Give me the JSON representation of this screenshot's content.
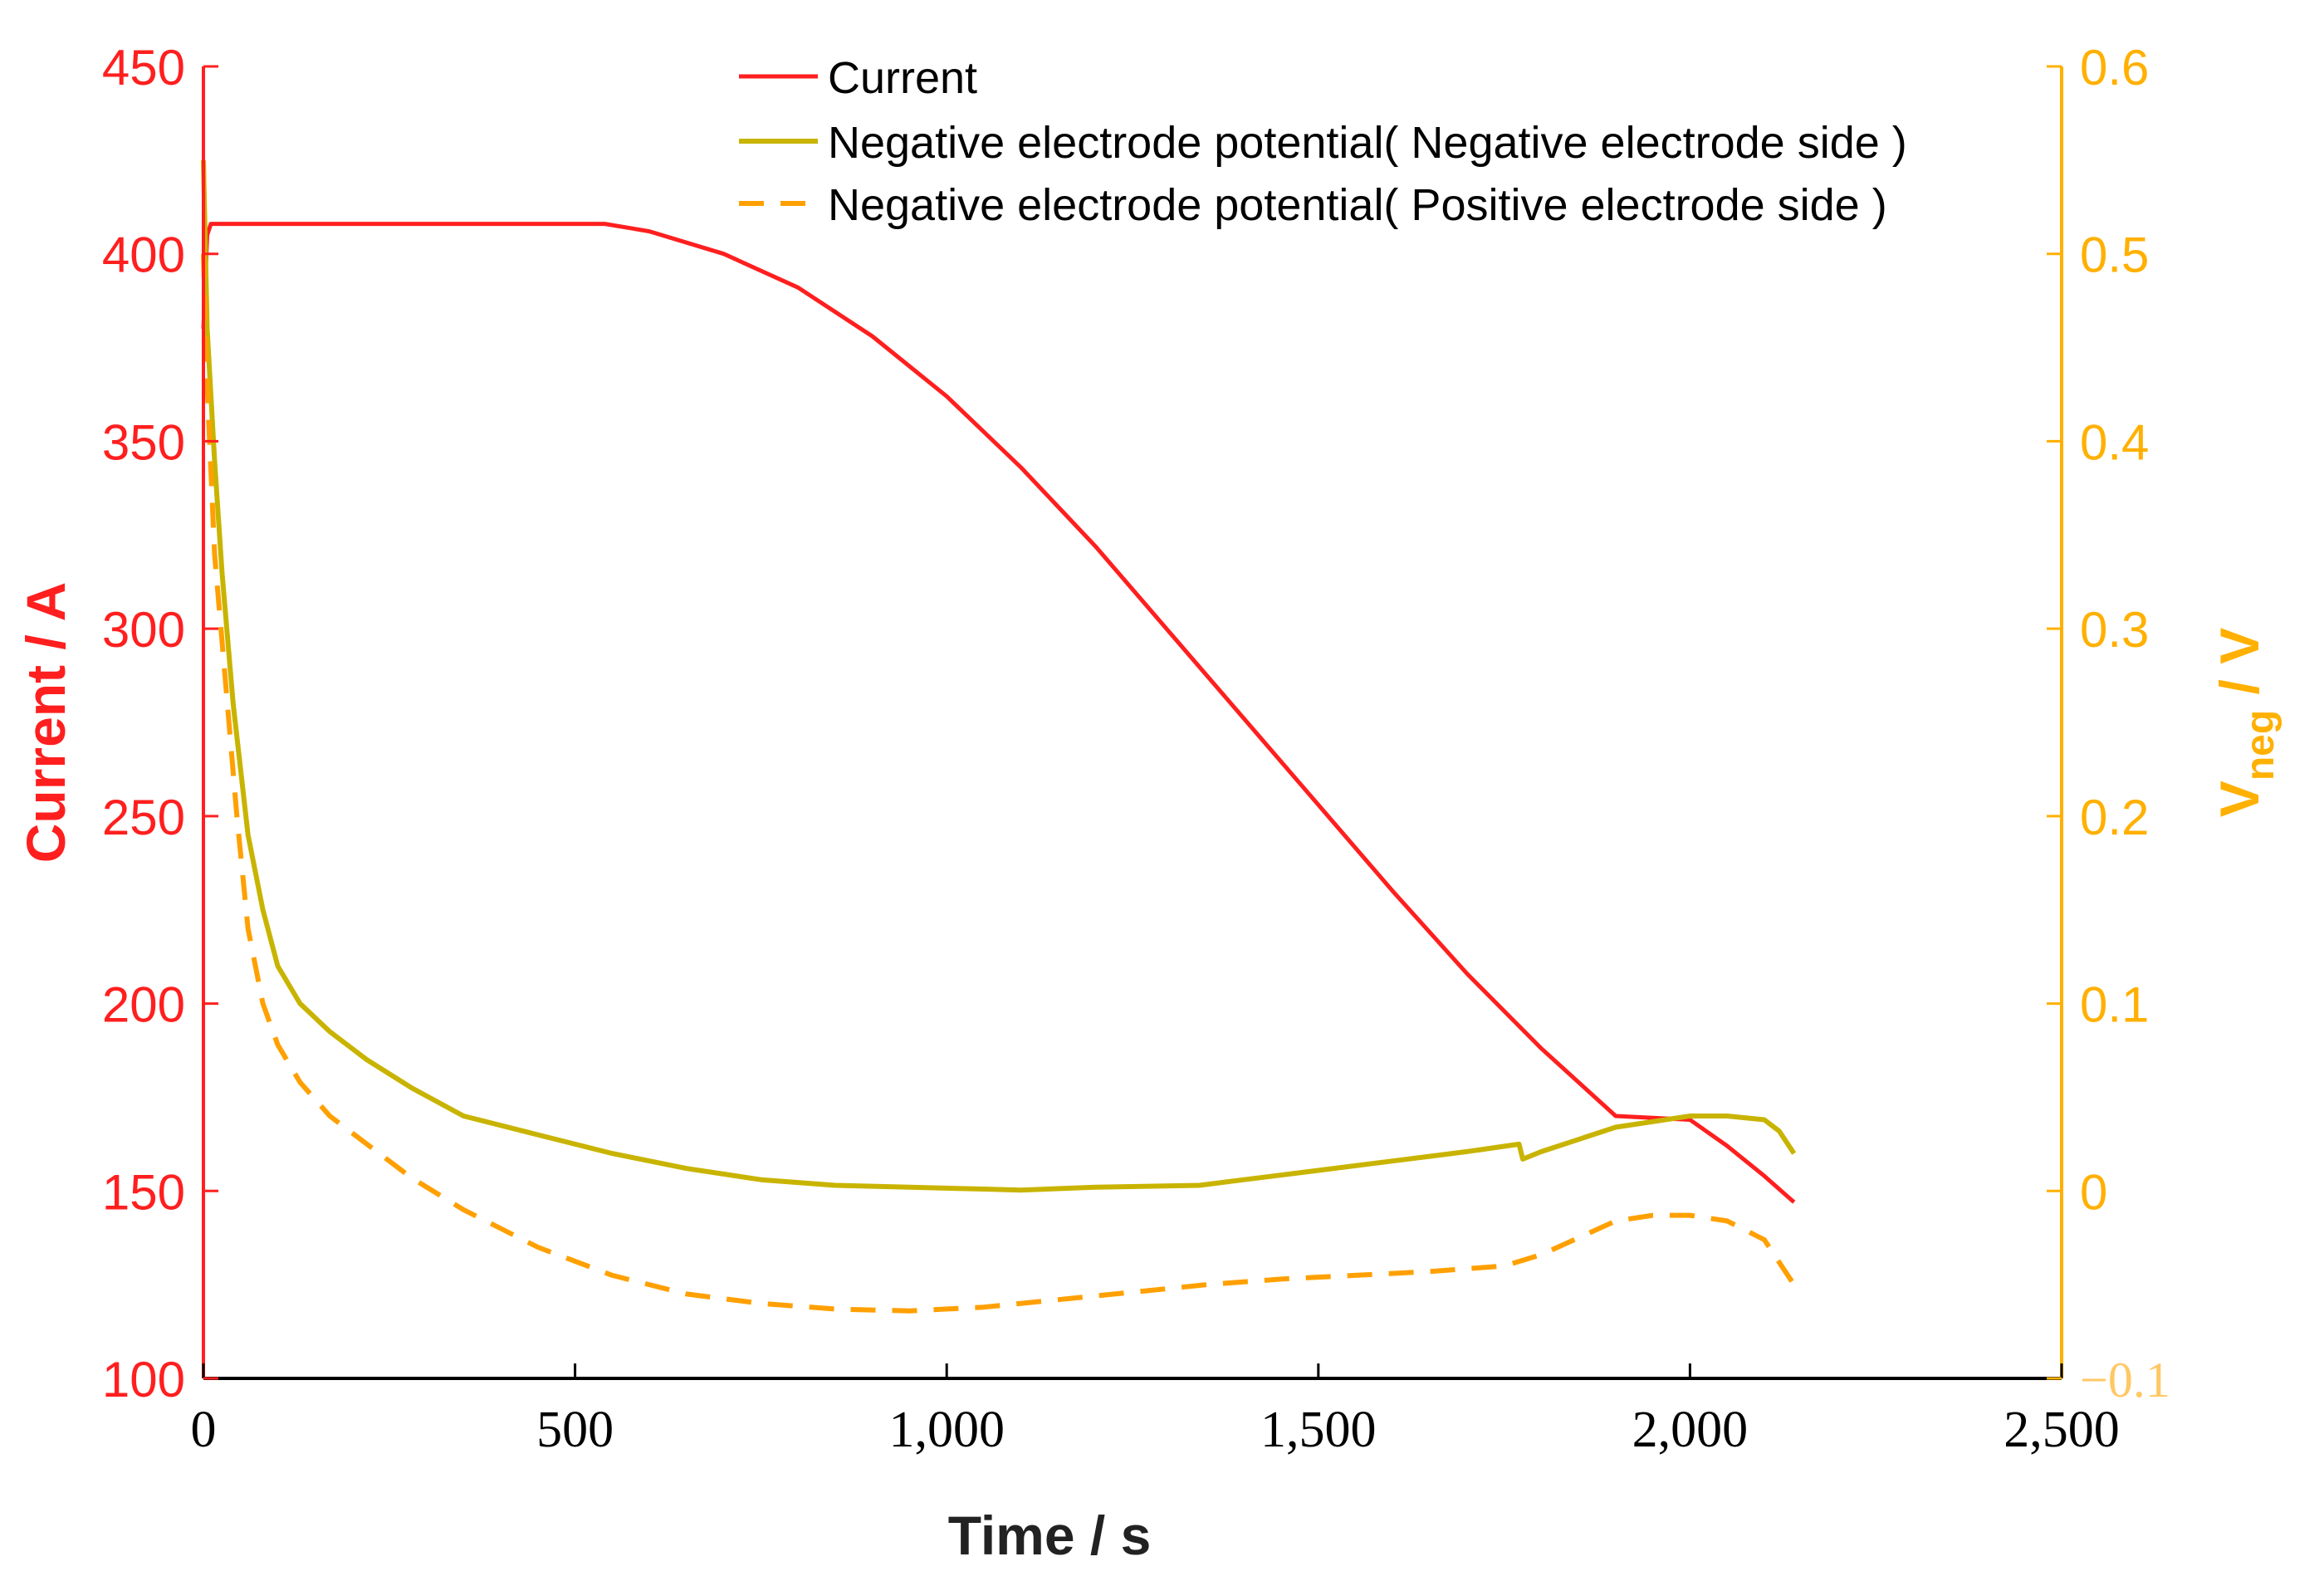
{
  "colors": {
    "current": "#ff1f1f",
    "neg_side": "#c8b400",
    "pos_side": "#ffa000",
    "right_axis": "#ffb000",
    "right_tick_light": "#ffc864",
    "axis_black": "#000000"
  },
  "chart_data": {
    "type": "line",
    "title": "",
    "xlabel": "Time / s",
    "ylabel_left": "Current / A",
    "ylabel_right_main": "V",
    "ylabel_right_sub": "neg",
    "ylabel_right_suffix": " / V",
    "xlim": [
      0,
      2500
    ],
    "ylim_left": [
      100,
      450
    ],
    "ylim_right": [
      -0.1,
      0.6
    ],
    "x_ticks": [
      0,
      500,
      1000,
      1500,
      2000,
      2500
    ],
    "x_tick_labels": [
      "0",
      "500",
      "1,000",
      "1,500",
      "2,000",
      "2,500"
    ],
    "y_left_ticks": [
      100,
      150,
      200,
      250,
      300,
      350,
      400,
      450
    ],
    "y_left_tick_labels": [
      "100",
      "150",
      "200",
      "250",
      "300",
      "350",
      "400",
      "450"
    ],
    "y_right_ticks": [
      -0.1,
      0,
      0.1,
      0.2,
      0.3,
      0.4,
      0.5,
      0.6
    ],
    "y_right_tick_labels": [
      "−0.1",
      "0",
      "0.1",
      "0.2",
      "0.3",
      "0.4",
      "0.5",
      "0.6"
    ],
    "legend_position": "top-center",
    "series": [
      {
        "name": "Current",
        "axis": "left",
        "style": "solid",
        "x": [
          0,
          5,
          10,
          100,
          300,
          500,
          540,
          600,
          700,
          800,
          900,
          1000,
          1100,
          1200,
          1300,
          1400,
          1500,
          1600,
          1700,
          1800,
          1900,
          2000,
          2050,
          2100,
          2140
        ],
        "y": [
          380,
          405,
          408,
          408,
          408,
          408,
          408,
          406,
          400,
          391,
          378,
          362,
          343,
          322,
          299,
          276,
          253,
          230,
          208,
          188,
          170,
          169,
          162,
          154,
          147
        ]
      },
      {
        "name": "Negative electrode potential( Negative electrode side )",
        "axis": "right",
        "style": "solid",
        "x": [
          0,
          5,
          15,
          25,
          40,
          60,
          80,
          100,
          130,
          170,
          220,
          280,
          350,
          450,
          550,
          650,
          750,
          850,
          950,
          1050,
          1100,
          1200,
          1340,
          1400,
          1500,
          1600,
          1700,
          1770,
          1775,
          1800,
          1900,
          2000,
          2050,
          2100,
          2120,
          2140
        ],
        "y": [
          0.55,
          0.46,
          0.39,
          0.33,
          0.26,
          0.19,
          0.15,
          0.12,
          0.1,
          0.085,
          0.07,
          0.055,
          0.04,
          0.03,
          0.02,
          0.012,
          0.006,
          0.003,
          0.002,
          0.001,
          0.0005,
          0.002,
          0.003,
          0.006,
          0.011,
          0.016,
          0.021,
          0.025,
          0.017,
          0.021,
          0.034,
          0.04,
          0.04,
          0.038,
          0.032,
          0.02
        ]
      },
      {
        "name": "Negative electrode potential( Positive electrode side )",
        "axis": "right",
        "style": "dashed",
        "x": [
          0,
          5,
          15,
          30,
          45,
          60,
          80,
          100,
          130,
          170,
          220,
          280,
          350,
          450,
          550,
          650,
          750,
          850,
          950,
          1050,
          1150,
          1250,
          1350,
          1450,
          1550,
          1650,
          1750,
          1800,
          1850,
          1900,
          1950,
          2000,
          2050,
          2100,
          2120,
          2140
        ],
        "y": [
          0.5,
          0.43,
          0.34,
          0.27,
          0.2,
          0.14,
          0.1,
          0.078,
          0.058,
          0.04,
          0.025,
          0.007,
          -0.01,
          -0.03,
          -0.045,
          -0.055,
          -0.06,
          -0.063,
          -0.064,
          -0.062,
          -0.058,
          -0.054,
          -0.05,
          -0.047,
          -0.045,
          -0.043,
          -0.04,
          -0.034,
          -0.025,
          -0.016,
          -0.013,
          -0.013,
          -0.016,
          -0.026,
          -0.038,
          -0.05
        ]
      }
    ]
  }
}
